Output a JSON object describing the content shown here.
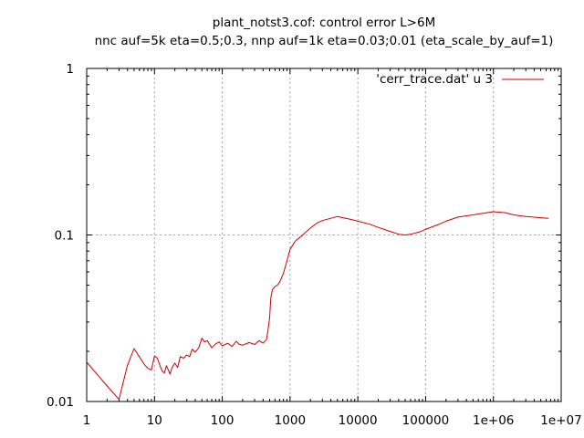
{
  "chart_data": {
    "type": "line",
    "title": "plant_notst3.cof: control error L>6M",
    "subtitle": "nnc auf=5k eta=0.5;0.3, nnp auf=1k eta=0.03;0.01 (eta_scale_by_auf=1)",
    "xscale": "log",
    "yscale": "log",
    "xlim": [
      1,
      10000000
    ],
    "ylim": [
      0.01,
      1
    ],
    "grid": true,
    "legend_position": "top-right",
    "x_ticks": [
      {
        "value": 1,
        "label": "1"
      },
      {
        "value": 10,
        "label": "10"
      },
      {
        "value": 100,
        "label": "100"
      },
      {
        "value": 1000,
        "label": "1000"
      },
      {
        "value": 10000,
        "label": "10000"
      },
      {
        "value": 100000,
        "label": "100000"
      },
      {
        "value": 1000000,
        "label": "1e+06"
      },
      {
        "value": 10000000,
        "label": "1e+07"
      }
    ],
    "y_ticks": [
      {
        "value": 0.01,
        "label": "0.01"
      },
      {
        "value": 0.1,
        "label": "0.1"
      },
      {
        "value": 1,
        "label": "1"
      }
    ],
    "series": [
      {
        "name": "'cerr_trace.dat' u 3",
        "color": "#cc0000",
        "x": [
          1,
          1.5,
          2,
          3,
          4,
          5,
          6,
          7,
          8,
          9,
          10,
          11,
          12,
          13,
          14,
          15,
          16,
          17,
          18,
          20,
          22,
          24,
          27,
          30,
          33,
          36,
          40,
          45,
          50,
          55,
          60,
          70,
          80,
          90,
          100,
          120,
          140,
          160,
          180,
          200,
          250,
          300,
          350,
          400,
          450,
          480,
          500,
          520,
          550,
          600,
          650,
          700,
          800,
          900,
          1000,
          1200,
          1500,
          2000,
          2500,
          3000,
          4000,
          5000,
          6000,
          8000,
          10000,
          15000,
          20000,
          30000,
          40000,
          50000,
          60000,
          80000,
          100000,
          150000,
          200000,
          300000,
          500000,
          700000,
          1000000,
          1500000,
          2000000,
          3000000,
          5000000,
          6500000
        ],
        "y": [
          0.0172,
          0.0142,
          0.0124,
          0.0103,
          0.0165,
          0.0208,
          0.0185,
          0.0168,
          0.0158,
          0.0155,
          0.0188,
          0.0182,
          0.0165,
          0.0152,
          0.0148,
          0.0164,
          0.0155,
          0.0146,
          0.0158,
          0.017,
          0.016,
          0.0186,
          0.0182,
          0.019,
          0.0186,
          0.0206,
          0.0198,
          0.021,
          0.024,
          0.0228,
          0.0232,
          0.021,
          0.0222,
          0.0228,
          0.0216,
          0.0224,
          0.0214,
          0.023,
          0.022,
          0.0218,
          0.0226,
          0.022,
          0.0232,
          0.0224,
          0.0236,
          0.028,
          0.032,
          0.042,
          0.047,
          0.049,
          0.05,
          0.052,
          0.059,
          0.07,
          0.082,
          0.092,
          0.099,
          0.11,
          0.118,
          0.122,
          0.126,
          0.129,
          0.127,
          0.124,
          0.121,
          0.116,
          0.111,
          0.105,
          0.101,
          0.1,
          0.101,
          0.104,
          0.108,
          0.115,
          0.121,
          0.128,
          0.132,
          0.135,
          0.138,
          0.136,
          0.132,
          0.129,
          0.127,
          0.126
        ]
      }
    ]
  }
}
